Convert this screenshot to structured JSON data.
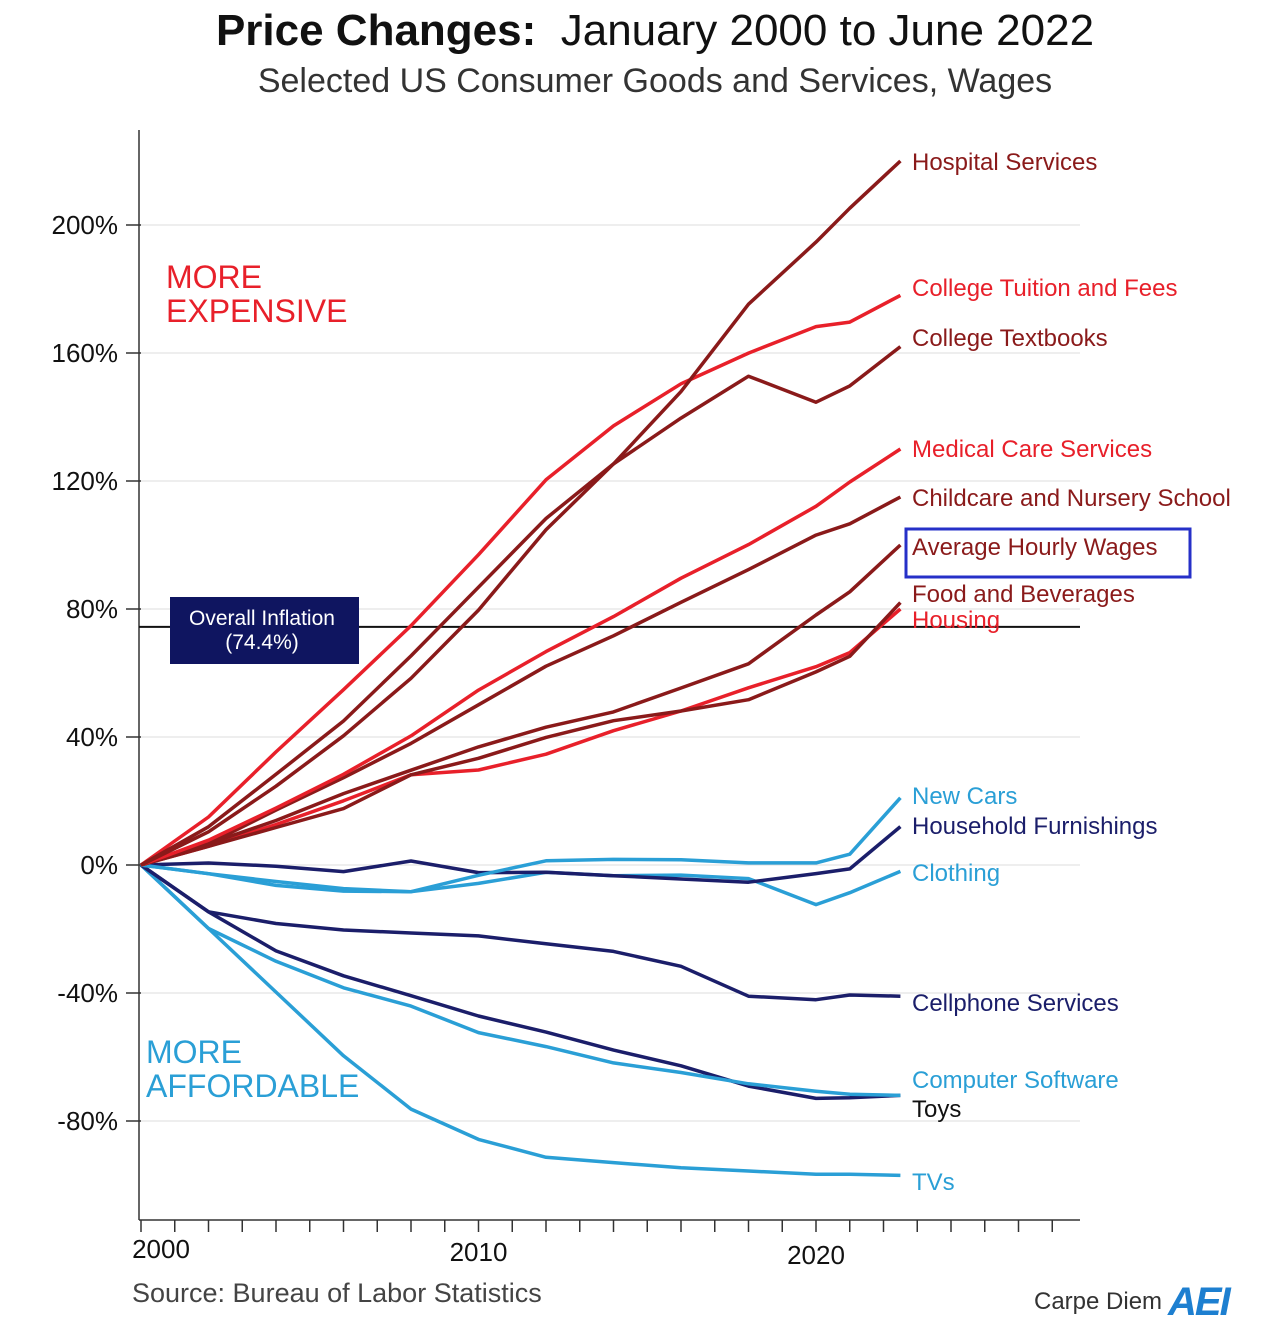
{
  "title_bold": "Price Changes:",
  "title_rest": "January 2000 to June 2022",
  "subtitle": "Selected US Consumer Goods and Services, Wages",
  "source": "Source: Bureau of Labor Statistics",
  "brand": "Carpe Diem",
  "brand_logo": "AEI",
  "colors": {
    "red": "#e8202a",
    "dark_red": "#8a1a1a",
    "light_blue": "#2a9fd6",
    "navy": "#1b1e6a"
  },
  "chart_data": {
    "type": "line",
    "title": "Price Changes: January 2000 to June 2022",
    "xlabel": "",
    "ylabel": "",
    "xlim": [
      2000,
      2027
    ],
    "ylim": [
      -100,
      220
    ],
    "x_ticks": [
      "2000",
      "2010",
      "2020"
    ],
    "y_ticks": [
      "200%",
      "160%",
      "120%",
      "80%",
      "40%",
      "0%",
      "-40%",
      "-80%"
    ],
    "y_tick_values": [
      200,
      160,
      120,
      80,
      40,
      0,
      -40,
      -80
    ],
    "annotations": {
      "more_expensive": [
        "MORE",
        "EXPENSIVE"
      ],
      "more_affordable": [
        "MORE",
        "AFFORDABLE"
      ],
      "inflation_label": [
        "Overall Inflation",
        "(74.4%)"
      ],
      "inflation_value": 74.4
    },
    "x": [
      2000,
      2002,
      2004,
      2006,
      2008,
      2010,
      2012,
      2014,
      2016,
      2018,
      2020,
      2021,
      2022.5
    ],
    "series": [
      {
        "name": "Hospital Services",
        "color": "dark_red",
        "values": [
          0,
          12,
          28,
          45,
          65,
          87,
          108,
          125,
          148,
          175,
          195,
          205,
          220
        ]
      },
      {
        "name": "College Tuition and Fees",
        "color": "red",
        "values": [
          0,
          15,
          35,
          55,
          75,
          97,
          120,
          137,
          150,
          160,
          168,
          170,
          178
        ]
      },
      {
        "name": "College Textbooks",
        "color": "dark_red",
        "values": [
          0,
          10,
          25,
          40,
          58,
          80,
          105,
          125,
          140,
          153,
          145,
          150,
          162
        ]
      },
      {
        "name": "Medical Care Services",
        "color": "red",
        "values": [
          0,
          8,
          18,
          28,
          40,
          55,
          67,
          78,
          90,
          100,
          112,
          120,
          130
        ]
      },
      {
        "name": "Childcare and Nursery School",
        "color": "dark_red",
        "values": [
          0,
          7,
          17,
          27,
          38,
          50,
          62,
          72,
          82,
          92,
          103,
          107,
          115
        ]
      },
      {
        "name": "Average Hourly Wages",
        "color": "dark_red",
        "values": [
          0,
          7,
          14,
          22,
          30,
          37,
          43,
          48,
          55,
          63,
          78,
          85,
          100
        ],
        "highlight": true
      },
      {
        "name": "Food and Beverages",
        "color": "dark_red",
        "values": [
          0,
          6,
          12,
          18,
          28,
          33,
          40,
          45,
          48,
          52,
          60,
          65,
          82
        ]
      },
      {
        "name": "Housing",
        "color": "red",
        "values": [
          0,
          6,
          13,
          20,
          28,
          30,
          35,
          42,
          48,
          55,
          62,
          66,
          80
        ]
      },
      {
        "name": "New Cars",
        "color": "light_blue",
        "values": [
          0,
          -3,
          -5,
          -7,
          -8,
          -3,
          1,
          2,
          2,
          1,
          1,
          3,
          21
        ]
      },
      {
        "name": "Household Furnishings",
        "color": "navy",
        "values": [
          0,
          1,
          0,
          -2,
          1,
          -2,
          -2,
          -3,
          -4,
          -5,
          -3,
          -1,
          12
        ]
      },
      {
        "name": "Clothing",
        "color": "light_blue",
        "values": [
          0,
          -3,
          -6,
          -8,
          -8,
          -6,
          -2,
          -3,
          -3,
          -4,
          -12,
          -9,
          -2
        ]
      },
      {
        "name": "Cellphone Services",
        "color": "navy",
        "values": [
          0,
          -15,
          -18,
          -20,
          -21,
          -22,
          -25,
          -27,
          -32,
          -41,
          -42,
          -41,
          -41
        ]
      },
      {
        "name": "Computer Software",
        "color": "light_blue",
        "values": [
          0,
          -20,
          -30,
          -38,
          -44,
          -52,
          -57,
          -62,
          -65,
          -68,
          -71,
          -72,
          -72
        ]
      },
      {
        "name": "Toys",
        "color": "navy",
        "values": [
          0,
          -15,
          -27,
          -35,
          -41,
          -47,
          -52,
          -58,
          -63,
          -69,
          -73,
          -73,
          -72
        ]
      },
      {
        "name": "TVs",
        "color": "light_blue",
        "values": [
          0,
          -20,
          -40,
          -60,
          -76,
          -86,
          -91,
          -93,
          -95,
          -96,
          -97,
          -97,
          -97
        ]
      }
    ]
  }
}
